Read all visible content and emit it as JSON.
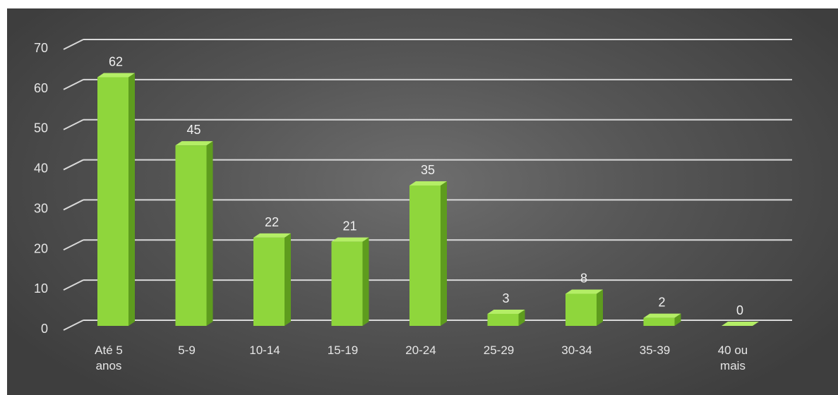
{
  "chart_data": {
    "type": "bar",
    "categories": [
      [
        "Até 5",
        "anos"
      ],
      [
        "5-9"
      ],
      [
        "10-14"
      ],
      [
        "15-19"
      ],
      [
        "20-24"
      ],
      [
        "25-29"
      ],
      [
        "30-34"
      ],
      [
        "35-39"
      ],
      [
        "40 ou",
        "mais"
      ]
    ],
    "values": [
      62,
      45,
      22,
      21,
      35,
      3,
      8,
      2,
      0
    ],
    "yticks": [
      0,
      10,
      20,
      30,
      40,
      50,
      60,
      70
    ],
    "ylim": [
      0,
      70
    ],
    "grid": true,
    "legend": "none",
    "colors": {
      "bar_front": "#8fd63c",
      "bar_side": "#5e9c1e",
      "bar_top": "#b4ee66",
      "gridline": "#d9d9d9",
      "text": "#e6e6e6"
    }
  }
}
